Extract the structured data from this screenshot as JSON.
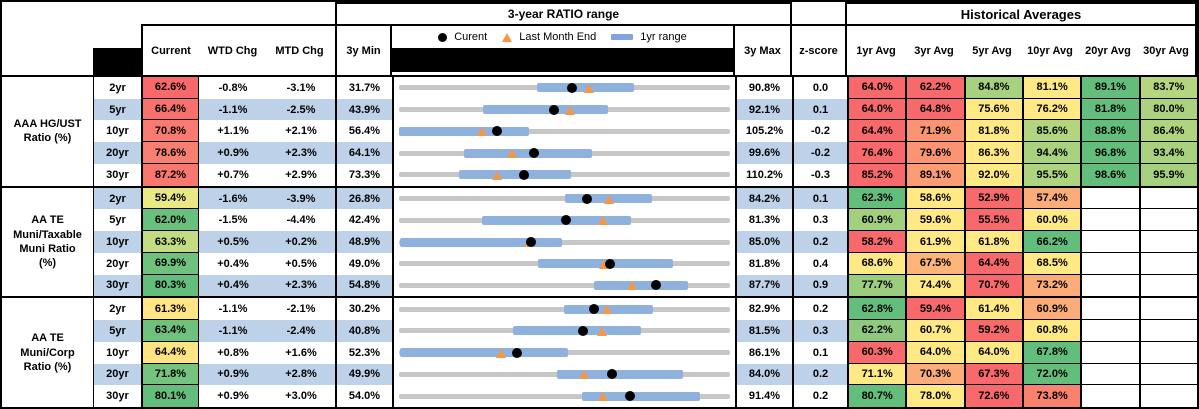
{
  "titles": {
    "range": "3-year RATIO range",
    "historical": "Historical Averages"
  },
  "columns": {
    "current": "Current",
    "wtd": "WTD Chg",
    "mtd": "MTD Chg",
    "min": "3y Min",
    "max": "3y Max",
    "z": "z-score",
    "averages": [
      "1yr Avg",
      "3yr Avg",
      "5yr Avg",
      "10yr Avg",
      "20yr Avg",
      "30yr Avg"
    ]
  },
  "legend": {
    "current": "Curent",
    "last_month_end": "Last Month End",
    "range_1yr": "1yr range"
  },
  "colors": {
    "stripe": "#BDD1E8",
    "track": "#C7C7C7",
    "range_bar": "#8FB1DE",
    "marker_dot": "#000000",
    "marker_triangle": "#F79646",
    "heat_red": "#F8696B",
    "heat_orange": "#FBAC78",
    "heat_yellow": "#FFE984",
    "heat_lightgreen": "#A6D17E",
    "heat_green": "#63BE7B"
  },
  "chart_data": {
    "type": "table",
    "groups": [
      {
        "label_lines": [
          "AAA HG/UST",
          "Ratio (%)"
        ],
        "rows": [
          {
            "tenor": "2yr",
            "current": 62.6,
            "current_color": "#F8696B",
            "wtd": "-0.8%",
            "mtd": "-3.1%",
            "min": 31.7,
            "max": 90.8,
            "z": "0.0",
            "last_month_end": 65.7,
            "range_1yr": [
              56.4,
              73.6
            ],
            "averages": [
              {
                "value": "64.0%",
                "color": "#F8696B"
              },
              {
                "value": "62.2%",
                "color": "#F8696B"
              },
              {
                "value": "84.8%",
                "color": "#A6D17E"
              },
              {
                "value": "81.1%",
                "color": "#FFE984"
              },
              {
                "value": "89.1%",
                "color": "#63BE7B"
              },
              {
                "value": "83.7%",
                "color": "#B5D67F"
              }
            ]
          },
          {
            "tenor": "5yr",
            "current": 66.4,
            "current_color": "#F8716D",
            "wtd": "-1.1%",
            "mtd": "-2.5%",
            "min": 43.9,
            "max": 92.1,
            "z": "0.1",
            "last_month_end": 68.9,
            "range_1yr": [
              56.2,
              74.4
            ],
            "averages": [
              {
                "value": "64.0%",
                "color": "#F8696B"
              },
              {
                "value": "64.8%",
                "color": "#F8696B"
              },
              {
                "value": "75.6%",
                "color": "#FFE984"
              },
              {
                "value": "76.2%",
                "color": "#FFE984"
              },
              {
                "value": "81.8%",
                "color": "#63BE7B"
              },
              {
                "value": "80.0%",
                "color": "#ABD37F"
              }
            ]
          },
          {
            "tenor": "10yr",
            "current": 70.8,
            "current_color": "#F87A70",
            "wtd": "+1.1%",
            "mtd": "+2.1%",
            "min": 56.4,
            "max": 105.2,
            "z": "-0.2",
            "last_month_end": 68.7,
            "range_1yr": [
              56.4,
              75.6
            ],
            "averages": [
              {
                "value": "64.4%",
                "color": "#F8696B"
              },
              {
                "value": "71.9%",
                "color": "#FA9473"
              },
              {
                "value": "81.8%",
                "color": "#FFE984"
              },
              {
                "value": "85.6%",
                "color": "#B2D57F"
              },
              {
                "value": "88.8%",
                "color": "#63BE7B"
              },
              {
                "value": "86.4%",
                "color": "#AFD47F"
              }
            ]
          },
          {
            "tenor": "20yr",
            "current": 78.6,
            "current_color": "#F88071",
            "wtd": "+0.9%",
            "mtd": "+2.3%",
            "min": 64.1,
            "max": 99.6,
            "z": "-0.2",
            "last_month_end": 76.3,
            "range_1yr": [
              71.1,
              84.8
            ],
            "averages": [
              {
                "value": "76.4%",
                "color": "#F8696B"
              },
              {
                "value": "79.6%",
                "color": "#FA9473"
              },
              {
                "value": "86.3%",
                "color": "#FFE984"
              },
              {
                "value": "94.4%",
                "color": "#A9D27F"
              },
              {
                "value": "96.8%",
                "color": "#63BE7B"
              },
              {
                "value": "93.4%",
                "color": "#A9D27F"
              }
            ]
          },
          {
            "tenor": "30yr",
            "current": 87.2,
            "current_color": "#F8776F",
            "wtd": "+0.7%",
            "mtd": "+2.9%",
            "min": 73.3,
            "max": 110.2,
            "z": "-0.3",
            "last_month_end": 84.3,
            "range_1yr": [
              80.0,
              92.5
            ],
            "averages": [
              {
                "value": "85.2%",
                "color": "#F8696B"
              },
              {
                "value": "89.1%",
                "color": "#FB9C75"
              },
              {
                "value": "92.0%",
                "color": "#FFE984"
              },
              {
                "value": "95.5%",
                "color": "#AED47F"
              },
              {
                "value": "98.6%",
                "color": "#63BE7B"
              },
              {
                "value": "95.9%",
                "color": "#A5D17E"
              }
            ]
          }
        ]
      },
      {
        "label_lines": [
          "AA TE",
          "Muni/Taxable",
          "Muni Ratio",
          "(%)"
        ],
        "rows": [
          {
            "tenor": "2yr",
            "current": 59.4,
            "current_color": "#E9E884",
            "wtd": "-1.6%",
            "mtd": "-3.9%",
            "min": 26.8,
            "max": 84.2,
            "z": "0.1",
            "last_month_end": 63.3,
            "range_1yr": [
              55.5,
              70.6
            ],
            "averages": [
              {
                "value": "62.3%",
                "color": "#63BE7B"
              },
              {
                "value": "58.6%",
                "color": "#FFE984"
              },
              {
                "value": "52.9%",
                "color": "#F8696B"
              },
              {
                "value": "57.4%",
                "color": "#FBAC78"
              },
              {
                "value": "",
                "color": ""
              },
              {
                "value": "",
                "color": ""
              }
            ]
          },
          {
            "tenor": "5yr",
            "current": 62.0,
            "current_color": "#69C07C",
            "wtd": "-1.5%",
            "mtd": "-4.4%",
            "min": 42.4,
            "max": 81.3,
            "z": "0.3",
            "last_month_end": 66.4,
            "range_1yr": [
              52.2,
              69.7
            ],
            "averages": [
              {
                "value": "60.9%",
                "color": "#A3D07E"
              },
              {
                "value": "59.6%",
                "color": "#FFE984"
              },
              {
                "value": "55.5%",
                "color": "#F8696B"
              },
              {
                "value": "60.0%",
                "color": "#FFE984"
              },
              {
                "value": "",
                "color": ""
              },
              {
                "value": "",
                "color": ""
              }
            ]
          },
          {
            "tenor": "10yr",
            "current": 63.3,
            "current_color": "#C3DB81",
            "wtd": "+0.5%",
            "mtd": "+0.2%",
            "min": 48.9,
            "max": 85.0,
            "z": "0.2",
            "last_month_end": 63.1,
            "range_1yr": [
              49.0,
              66.7
            ],
            "averages": [
              {
                "value": "58.2%",
                "color": "#F8696B"
              },
              {
                "value": "61.9%",
                "color": "#FFE984"
              },
              {
                "value": "61.8%",
                "color": "#FFE984"
              },
              {
                "value": "66.2%",
                "color": "#63BE7B"
              },
              {
                "value": "",
                "color": ""
              },
              {
                "value": "",
                "color": ""
              }
            ]
          },
          {
            "tenor": "20yr",
            "current": 69.9,
            "current_color": "#6EC27C",
            "wtd": "+0.4%",
            "mtd": "+0.5%",
            "min": 49.0,
            "max": 81.8,
            "z": "0.4",
            "last_month_end": 69.4,
            "range_1yr": [
              62.8,
              76.2
            ],
            "averages": [
              {
                "value": "68.6%",
                "color": "#FFE984"
              },
              {
                "value": "67.5%",
                "color": "#FCB479"
              },
              {
                "value": "64.4%",
                "color": "#F8696B"
              },
              {
                "value": "68.5%",
                "color": "#FFE984"
              },
              {
                "value": "",
                "color": ""
              },
              {
                "value": "",
                "color": ""
              }
            ]
          },
          {
            "tenor": "30yr",
            "current": 80.3,
            "current_color": "#63BE7B",
            "wtd": "+0.4%",
            "mtd": "+2.3%",
            "min": 54.8,
            "max": 87.7,
            "z": "0.9",
            "last_month_end": 78.0,
            "range_1yr": [
              74.2,
              83.5
            ],
            "averages": [
              {
                "value": "77.7%",
                "color": "#9CCD7E"
              },
              {
                "value": "74.4%",
                "color": "#FFE984"
              },
              {
                "value": "70.7%",
                "color": "#F8696B"
              },
              {
                "value": "73.2%",
                "color": "#FBAC78"
              },
              {
                "value": "",
                "color": ""
              },
              {
                "value": "",
                "color": ""
              }
            ]
          }
        ]
      },
      {
        "label_lines": [
          "AA TE",
          "Muni/Corp",
          "Ratio (%)"
        ],
        "rows": [
          {
            "tenor": "2yr",
            "current": 61.3,
            "current_color": "#FFE584",
            "wtd": "-1.1%",
            "mtd": "-2.1%",
            "min": 30.2,
            "max": 82.9,
            "z": "0.2",
            "last_month_end": 63.4,
            "range_1yr": [
              56.5,
              70.7
            ],
            "averages": [
              {
                "value": "62.8%",
                "color": "#63BE7B"
              },
              {
                "value": "59.4%",
                "color": "#F8696B"
              },
              {
                "value": "61.4%",
                "color": "#FFE984"
              },
              {
                "value": "60.9%",
                "color": "#FBAC78"
              },
              {
                "value": "",
                "color": ""
              },
              {
                "value": "",
                "color": ""
              }
            ]
          },
          {
            "tenor": "5yr",
            "current": 63.4,
            "current_color": "#6FC27D",
            "wtd": "-1.1%",
            "mtd": "-2.4%",
            "min": 40.8,
            "max": 81.5,
            "z": "0.3",
            "last_month_end": 65.8,
            "range_1yr": [
              54.8,
              70.5
            ],
            "averages": [
              {
                "value": "62.2%",
                "color": "#8FC97D"
              },
              {
                "value": "60.7%",
                "color": "#FFE984"
              },
              {
                "value": "59.2%",
                "color": "#F8696B"
              },
              {
                "value": "60.8%",
                "color": "#FFE984"
              },
              {
                "value": "",
                "color": ""
              },
              {
                "value": "",
                "color": ""
              }
            ]
          },
          {
            "tenor": "10yr",
            "current": 64.4,
            "current_color": "#FFE484",
            "wtd": "+0.8%",
            "mtd": "+1.6%",
            "min": 52.3,
            "max": 86.1,
            "z": "0.1",
            "last_month_end": 62.8,
            "range_1yr": [
              52.4,
              69.6
            ],
            "averages": [
              {
                "value": "60.3%",
                "color": "#F8696B"
              },
              {
                "value": "64.0%",
                "color": "#FFE984"
              },
              {
                "value": "64.0%",
                "color": "#FFE984"
              },
              {
                "value": "67.8%",
                "color": "#63BE7B"
              },
              {
                "value": "",
                "color": ""
              },
              {
                "value": "",
                "color": ""
              }
            ]
          },
          {
            "tenor": "20yr",
            "current": 71.8,
            "current_color": "#74C47D",
            "wtd": "+0.9%",
            "mtd": "+2.8%",
            "min": 49.9,
            "max": 84.0,
            "z": "0.2",
            "last_month_end": 69.0,
            "range_1yr": [
              66.2,
              79.2
            ],
            "averages": [
              {
                "value": "71.1%",
                "color": "#FFE984"
              },
              {
                "value": "70.3%",
                "color": "#FBAC78"
              },
              {
                "value": "67.3%",
                "color": "#F8696B"
              },
              {
                "value": "72.0%",
                "color": "#63BE7B"
              },
              {
                "value": "",
                "color": ""
              },
              {
                "value": "",
                "color": ""
              }
            ]
          },
          {
            "tenor": "30yr",
            "current": 80.1,
            "current_color": "#63BE7B",
            "wtd": "+0.9%",
            "mtd": "+3.0%",
            "min": 54.0,
            "max": 91.4,
            "z": "0.2",
            "last_month_end": 77.1,
            "range_1yr": [
              74.7,
              88.0
            ],
            "averages": [
              {
                "value": "80.7%",
                "color": "#63BE7B"
              },
              {
                "value": "78.0%",
                "color": "#FFE984"
              },
              {
                "value": "72.6%",
                "color": "#F8696B"
              },
              {
                "value": "73.8%",
                "color": "#F9826F"
              },
              {
                "value": "",
                "color": ""
              },
              {
                "value": "",
                "color": ""
              }
            ]
          }
        ]
      }
    ]
  }
}
